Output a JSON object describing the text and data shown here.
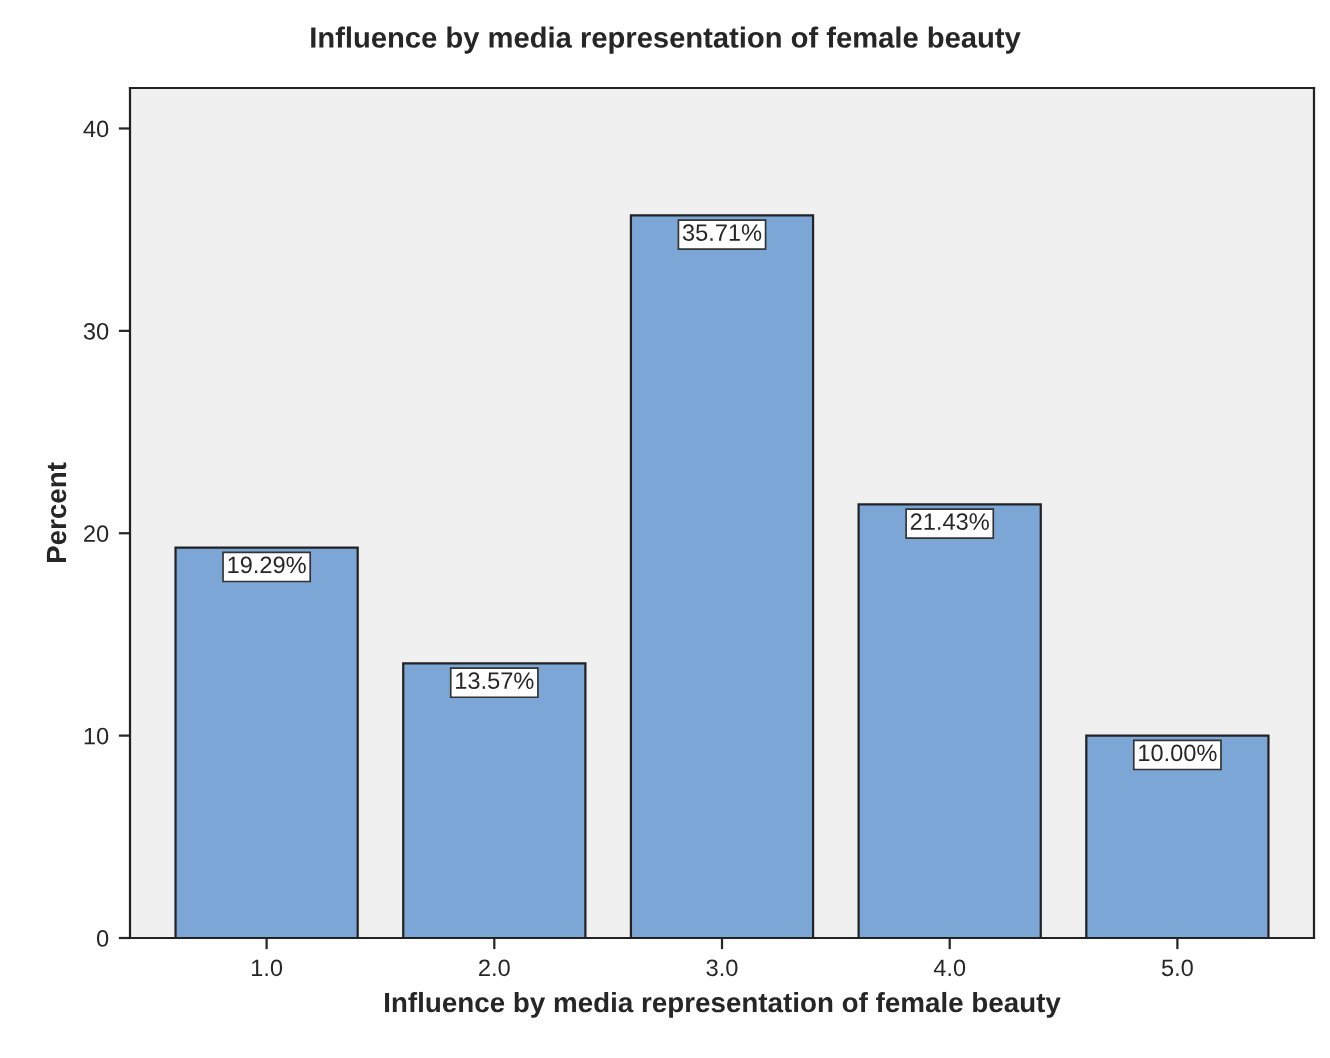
{
  "chart_data": {
    "type": "bar",
    "title": "Influence by media representation of female beauty",
    "xlabel": "Influence by media representation of female beauty",
    "ylabel": "Percent",
    "categories": [
      "1.0",
      "2.0",
      "3.0",
      "4.0",
      "5.0"
    ],
    "values": [
      19.29,
      13.57,
      35.71,
      21.43,
      10.0
    ],
    "value_labels": [
      "19.29%",
      "13.57%",
      "35.71%",
      "21.43%",
      "10.00%"
    ],
    "color": "#7ba6d5",
    "ylim": [
      0,
      42
    ],
    "yticks": [
      0,
      10,
      20,
      30,
      40
    ],
    "grid": false
  }
}
